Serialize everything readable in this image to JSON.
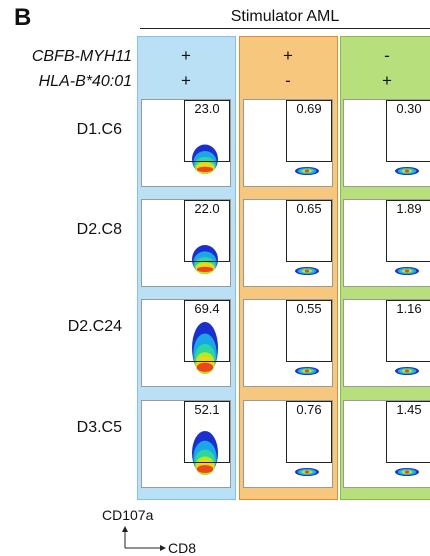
{
  "figure": {
    "panel_letter": "B",
    "header": "Stimulator AML",
    "genotype_rows": [
      {
        "label": "CBFB-MYH11",
        "signs": [
          "+",
          "+",
          "-"
        ]
      },
      {
        "label": "HLA-B*40:01",
        "signs": [
          "+",
          "-",
          "+"
        ]
      }
    ],
    "column_colors": [
      "#b9e0f5",
      "#f8c77e",
      "#b7e07c"
    ],
    "samples": [
      {
        "label": "D1.C6",
        "values": [
          "23.0",
          "0.69",
          "0.30"
        ]
      },
      {
        "label": "D2.C8",
        "values": [
          "22.0",
          "0.65",
          "1.89"
        ]
      },
      {
        "label": "D2.C24",
        "values": [
          "69.4",
          "0.55",
          "1.16"
        ]
      },
      {
        "label": "D3.C5",
        "values": [
          "52.1",
          "0.76",
          "1.45"
        ]
      }
    ],
    "axis": {
      "y_label": "CD107a",
      "x_label": "CD8"
    }
  }
}
